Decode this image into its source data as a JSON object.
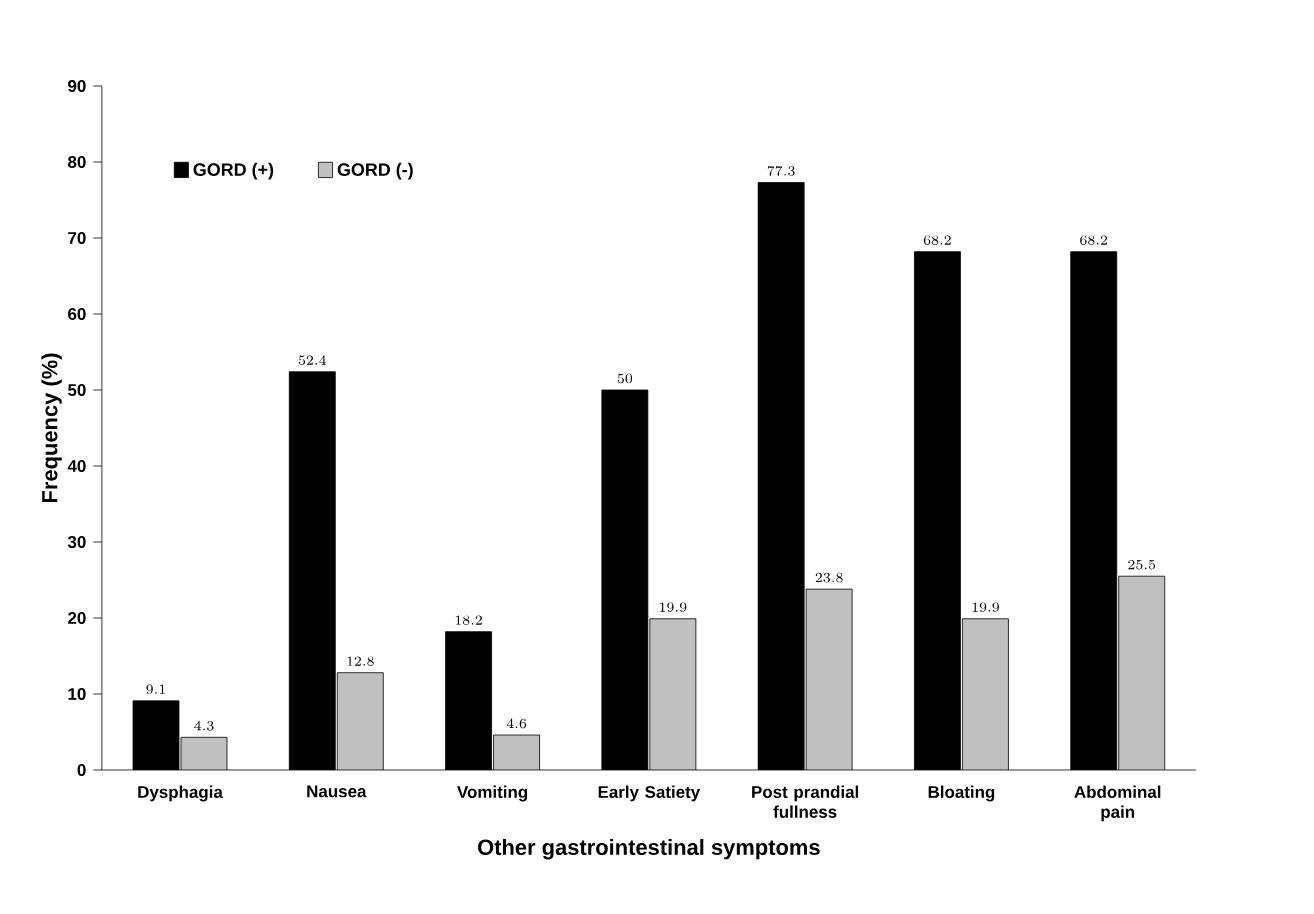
{
  "chart_data": {
    "type": "bar",
    "xlabel": "Other gastrointestinal symptoms",
    "ylabel": "Frequency (%)",
    "categories": [
      "Dysphagia",
      "Nausea",
      "Vomiting",
      "Early Satiety",
      "Post prandial fullness",
      "Bloating",
      "Abdominal pain"
    ],
    "series": [
      {
        "name": "GORD (+)",
        "color": "#000000",
        "values": [
          9.1,
          52.4,
          18.2,
          50,
          77.3,
          68.2,
          68.2
        ]
      },
      {
        "name": "GORD (-)",
        "color": "#c0c0c0",
        "values": [
          4.3,
          12.8,
          4.6,
          19.9,
          23.8,
          19.9,
          25.5
        ]
      }
    ],
    "ylim": [
      0,
      90
    ],
    "yticks": [
      0,
      10,
      20,
      30,
      40,
      50,
      60,
      70,
      80,
      90
    ],
    "legend": "top left",
    "data_labels": true
  }
}
